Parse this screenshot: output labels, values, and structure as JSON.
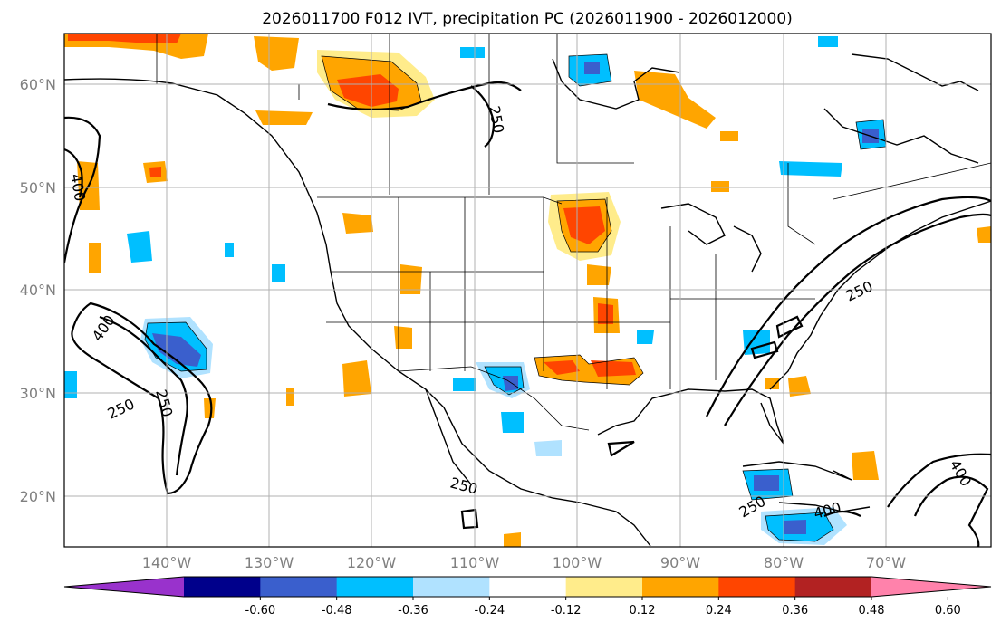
{
  "title": "2026011700 F012 IVT, precipitation PC (2026011900 - 2026012000)",
  "map": {
    "lat_labels": [
      "60°N",
      "50°N",
      "40°N",
      "30°N",
      "20°N"
    ],
    "lon_labels": [
      "140°W",
      "130°W",
      "120°W",
      "110°W",
      "100°W",
      "90°W",
      "80°W",
      "70°W"
    ],
    "extent": {
      "lon_min": -150,
      "lon_max": -60,
      "lat_min": 15,
      "lat_max": 65
    },
    "contour_labels": [
      "250",
      "400",
      "400",
      "250",
      "250",
      "250",
      "250",
      "250",
      "400",
      "400"
    ]
  },
  "colorbar": {
    "ticks": [
      "-0.60",
      "-0.48",
      "-0.36",
      "-0.24",
      "-0.12",
      "0.12",
      "0.24",
      "0.36",
      "0.48",
      "0.60"
    ],
    "colors": [
      "#9932cc",
      "#00008b",
      "#3a5fcd",
      "#00bfff",
      "#b0e2ff",
      "#ffffff",
      "#ffec8b",
      "#ffa500",
      "#ff4500",
      "#b22222",
      "#ff82ab"
    ]
  }
}
